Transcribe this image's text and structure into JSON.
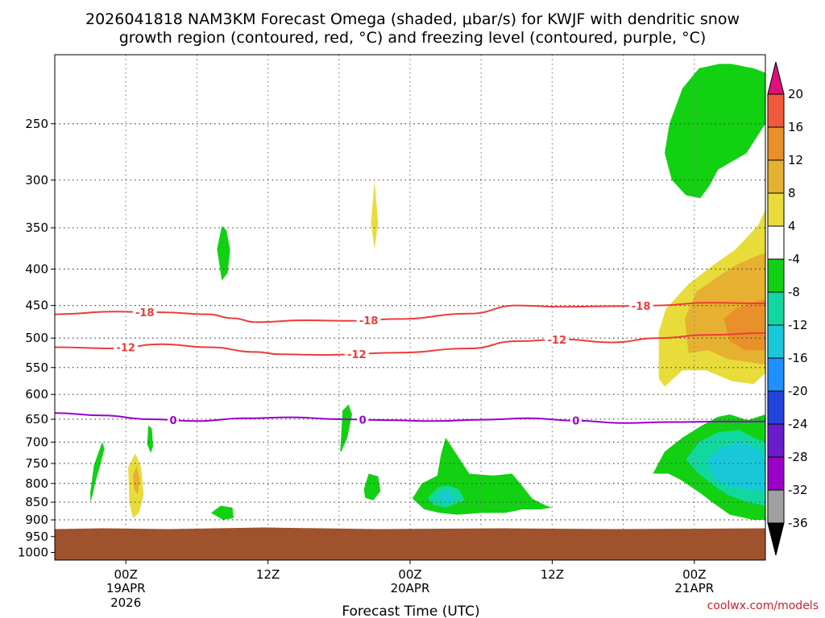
{
  "chart_data": {
    "type": "heatmap",
    "title_line1": "2026041818 NAM3KM Forecast Omega (shaded, μbar/s) for KWJF with dendritic snow",
    "title_line2": "growth region (contoured, red, °C) and freezing level (contoured, purple, °C)",
    "xlabel": "Forecast Time (UTC)",
    "credit": "coolwx.com/models",
    "x_ticks": [
      {
        "hour": 6,
        "label": "00Z",
        "sub1": "19APR",
        "sub2": "2026"
      },
      {
        "hour": 18,
        "label": "12Z",
        "sub1": "",
        "sub2": ""
      },
      {
        "hour": 30,
        "label": "00Z",
        "sub1": "20APR",
        "sub2": ""
      },
      {
        "hour": 42,
        "label": "12Z",
        "sub1": "",
        "sub2": ""
      },
      {
        "hour": 54,
        "label": "00Z",
        "sub1": "21APR",
        "sub2": ""
      }
    ],
    "x_grid_hours": [
      6,
      12,
      18,
      24,
      30,
      36,
      42,
      48,
      54
    ],
    "xlim": [
      0,
      60
    ],
    "y_levels_hpa": [
      250,
      300,
      350,
      400,
      450,
      500,
      550,
      600,
      650,
      700,
      750,
      800,
      850,
      900,
      950,
      1000
    ],
    "ylim_hpa": [
      200,
      1025
    ],
    "surface_pressure_hpa": 925,
    "colorbar_levels": [
      -36,
      -32,
      -28,
      -24,
      -20,
      -16,
      -12,
      -8,
      -4,
      4,
      8,
      12,
      16,
      20
    ],
    "colorbar_colors": [
      "#a0a0a0",
      "#9a00c8",
      "#6a1ccc",
      "#2244dd",
      "#1e90ff",
      "#18c8d8",
      "#12d8a0",
      "#12d012",
      "#ffffff",
      "#e8dc3a",
      "#e6b030",
      "#e8902a",
      "#f05a3c",
      "#e0107a"
    ],
    "colors": {
      "terrain": "#a0522d",
      "isotherm_dgz": "#ee3b3b",
      "freezing_level": "#9900cc"
    },
    "contours": [
      {
        "name": "isotherm-minus-18",
        "label": "-18",
        "color": "#ee3b3b",
        "hours": [
          0,
          5,
          9,
          13,
          15,
          17,
          21,
          25,
          29,
          35,
          39,
          43,
          47,
          51,
          55,
          60
        ],
        "hpa": [
          463,
          459,
          460,
          463,
          469,
          475,
          472,
          473,
          470,
          462,
          450,
          452,
          451,
          450,
          446,
          447
        ],
        "labels_at_hours": [
          7.6,
          26.5,
          49.5
        ]
      },
      {
        "name": "isotherm-minus-12",
        "label": "-12",
        "color": "#ee3b3b",
        "hours": [
          0,
          5,
          9,
          13,
          17,
          19,
          23,
          29,
          35,
          39,
          43,
          47,
          51,
          55,
          60
        ],
        "hpa": [
          515,
          517,
          510,
          515,
          523,
          527,
          528,
          524,
          517,
          505,
          502,
          507,
          500,
          495,
          492
        ],
        "labels_at_hours": [
          6,
          25.5,
          42.4
        ]
      },
      {
        "name": "freezing-level",
        "label": "0",
        "color": "#9900cc",
        "hours": [
          0,
          4,
          8,
          12,
          16,
          20,
          24,
          28,
          32,
          36,
          40,
          44,
          48,
          52,
          56,
          60
        ],
        "hpa": [
          637,
          642,
          650,
          654,
          648,
          646,
          650,
          652,
          654,
          651,
          648,
          653,
          658,
          656,
          655,
          655
        ],
        "labels_at_hours": [
          10,
          26,
          44
        ]
      }
    ],
    "omega_regions": [
      {
        "name": "green-top-right",
        "class": -8,
        "hours": [
          51.5,
          51.9,
          53,
          54.4,
          56.1,
          57.1,
          59,
          60,
          60,
          58.4,
          56,
          55.3,
          55,
          54.5,
          53.3,
          52.1,
          51.5
        ],
        "hpa": [
          275,
          250,
          223,
          209,
          206,
          206,
          209,
          212,
          250,
          275,
          290,
          305,
          310,
          318,
          315,
          300,
          275
        ]
      },
      {
        "name": "green-upper-blob",
        "class": -8,
        "hours": [
          13.7,
          14.1,
          14.5,
          14.8,
          14.6,
          14.1,
          13.7
        ],
        "hpa": [
          375,
          348,
          353,
          376,
          405,
          415,
          375
        ]
      },
      {
        "name": "green-low-a",
        "class": -8,
        "hours": [
          3,
          3.3,
          4,
          4.2,
          3.8,
          3.4,
          3.2,
          3,
          3
        ],
        "hpa": [
          823,
          755,
          700,
          715,
          758,
          800,
          830,
          850,
          823
        ]
      },
      {
        "name": "green-low-b",
        "class": -8,
        "hours": [
          7.8,
          7.9,
          8.2,
          8.3,
          8.1,
          7.8
        ],
        "hpa": [
          705,
          663,
          670,
          710,
          725,
          705
        ]
      },
      {
        "name": "green-low-c",
        "class": -8,
        "hours": [
          13.2,
          14,
          15,
          15.1,
          14.2,
          13.2
        ],
        "hpa": [
          880,
          860,
          865,
          895,
          900,
          880
        ]
      },
      {
        "name": "green-low-d",
        "class": -8,
        "hours": [
          24.1,
          24.3,
          24.8,
          25.1,
          24.7,
          24.2,
          24.1
        ],
        "hpa": [
          722,
          632,
          620,
          640,
          690,
          722,
          722
        ]
      },
      {
        "name": "green-low-e",
        "class": -8,
        "hours": [
          26.1,
          26.5,
          27.3,
          27.5,
          26.9,
          26.2,
          26.1
        ],
        "hpa": [
          815,
          775,
          782,
          820,
          845,
          838,
          815
        ]
      },
      {
        "name": "green-low-f",
        "class": -8,
        "hours": [
          30.2,
          31,
          32.3,
          32.6,
          33,
          35,
          37,
          38.6,
          39.3,
          40.3,
          41.5,
          42,
          41,
          39.5,
          38,
          36,
          34,
          32.5,
          31.2,
          30.2
        ],
        "hpa": [
          840,
          800,
          780,
          730,
          690,
          775,
          780,
          775,
          800,
          840,
          860,
          865,
          870,
          870,
          880,
          880,
          885,
          880,
          870,
          840
        ]
      },
      {
        "name": "green-right-low",
        "class": -8,
        "hours": [
          50.5,
          51.5,
          53,
          54.6,
          56,
          57,
          58.5,
          60,
          60,
          59,
          57,
          55.5,
          54.5,
          52.8,
          51.8,
          50.5,
          50.5
        ],
        "hpa": [
          775,
          722,
          690,
          664,
          645,
          640,
          652,
          640,
          900,
          900,
          885,
          850,
          825,
          790,
          775,
          775,
          775
        ]
      },
      {
        "name": "teal-low-f",
        "class": -12,
        "hours": [
          31.5,
          32.4,
          33.2,
          34.1,
          34.6,
          33.8,
          33,
          32,
          31.5
        ],
        "hpa": [
          838,
          810,
          805,
          815,
          845,
          855,
          865,
          858,
          838
        ]
      },
      {
        "name": "teal-right-low",
        "class": -12,
        "hours": [
          53.3,
          54.4,
          56,
          57.8,
          59,
          60,
          60,
          58.5,
          56.8,
          55.4,
          54.2,
          53.3
        ],
        "hpa": [
          740,
          700,
          678,
          673,
          690,
          700,
          860,
          850,
          830,
          800,
          770,
          740
        ]
      },
      {
        "name": "cyan-right-low",
        "class": -16,
        "hours": [
          55,
          56.2,
          57.8,
          59.2,
          60,
          60,
          58.5,
          57,
          55.8,
          55
        ],
        "hpa": [
          745,
          715,
          700,
          712,
          730,
          820,
          815,
          810,
          790,
          745
        ]
      },
      {
        "name": "cyan-low-f",
        "class": -16,
        "hours": [
          32.4,
          33.1,
          33.8,
          33.3,
          32.6,
          32.4
        ],
        "hpa": [
          830,
          820,
          835,
          850,
          848,
          830
        ]
      },
      {
        "name": "yellow-upper-spike",
        "class": 4,
        "hours": [
          26.7,
          27,
          27.3,
          27,
          26.7
        ],
        "hpa": [
          345,
          300,
          345,
          375,
          345
        ]
      },
      {
        "name": "yellow-low-left",
        "class": 4,
        "hours": [
          6.2,
          6.8,
          7.3,
          7.5,
          7.1,
          6.6,
          6.3,
          6.2
        ],
        "hpa": [
          760,
          726,
          760,
          830,
          880,
          895,
          850,
          760
        ]
      },
      {
        "name": "orange-low-left",
        "class": 8,
        "hours": [
          6.6,
          6.9,
          7.2,
          7,
          6.7,
          6.6
        ],
        "hpa": [
          780,
          755,
          790,
          830,
          815,
          780
        ]
      },
      {
        "name": "yellow-right-upper",
        "class": 4,
        "hours": [
          51,
          51.6,
          53.5,
          55.6,
          57.5,
          59.4,
          60,
          60,
          59,
          57.2,
          55,
          53,
          51.5,
          51,
          51
        ],
        "hpa": [
          490,
          455,
          420,
          395,
          375,
          347,
          330,
          560,
          580,
          575,
          555,
          555,
          585,
          570,
          490
        ]
      },
      {
        "name": "darkyellow-right-upper",
        "class": 8,
        "hours": [
          53.2,
          54.2,
          56,
          57.5,
          59.3,
          60,
          60,
          58.5,
          56.8,
          55.2,
          53.5,
          53.2
        ],
        "hpa": [
          470,
          430,
          410,
          395,
          383,
          380,
          545,
          540,
          535,
          520,
          525,
          470
        ]
      },
      {
        "name": "orange-right-upper",
        "class": 12,
        "hours": [
          56.5,
          57.5,
          59,
          59.8,
          60,
          60,
          58.3,
          57,
          56.5
        ],
        "hpa": [
          470,
          455,
          445,
          442,
          440,
          520,
          520,
          505,
          470
        ]
      }
    ]
  }
}
